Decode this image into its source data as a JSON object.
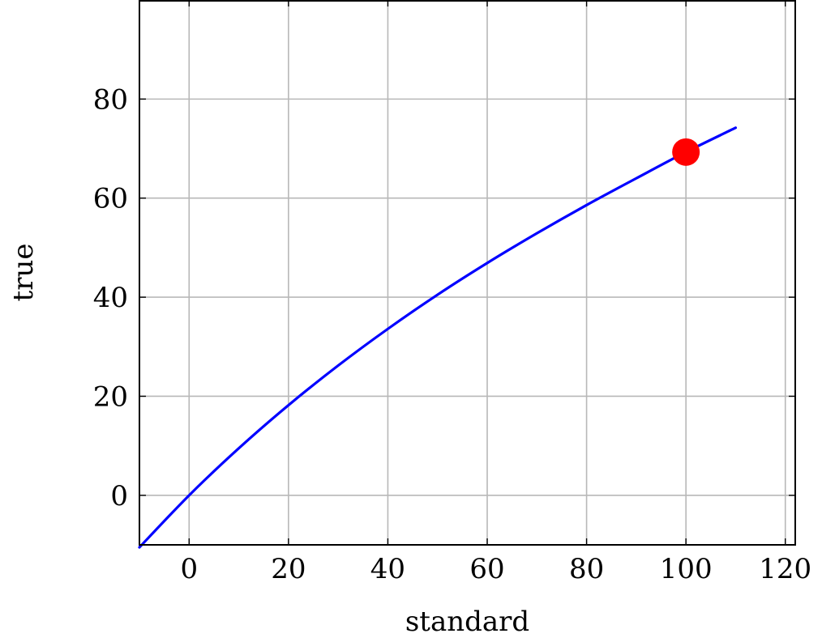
{
  "chart_data": {
    "type": "line",
    "title": "",
    "xlabel": "standard",
    "ylabel": "true",
    "xlim": [
      -10,
      122
    ],
    "ylim": [
      -10,
      100
    ],
    "x_ticks": [
      0,
      20,
      40,
      60,
      80,
      100,
      120
    ],
    "y_ticks": [
      0,
      20,
      40,
      60,
      80
    ],
    "grid": true,
    "series": [
      {
        "color": "#0000ff",
        "x": [
          -10,
          0,
          10,
          20,
          30,
          40,
          50,
          60,
          70,
          80,
          90,
          100,
          110
        ],
        "y": [
          -10.5,
          0,
          9.5,
          18.2,
          26.2,
          33.6,
          40.5,
          46.9,
          52.9,
          58.6,
          64.0,
          69.3,
          74.2
        ]
      }
    ],
    "highlight_point": {
      "x": 100,
      "y": 69.3,
      "color": "#ff0000"
    }
  }
}
